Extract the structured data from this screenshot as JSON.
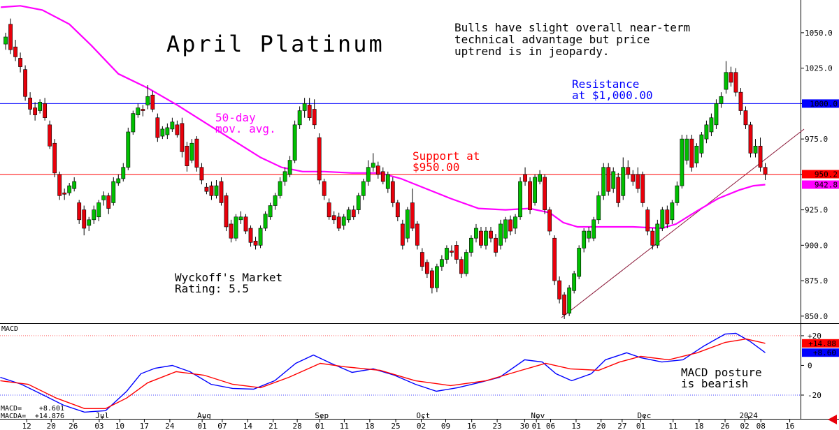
{
  "chart_data": {
    "type": "candlestick",
    "title": "April Platinum",
    "commentary": [
      "Bulls have slight overall near-term",
      "technical advantage but price",
      "uptrend is in jeopardy."
    ],
    "resistance_note": [
      "Resistance",
      "at $1,000.00"
    ],
    "support_note": [
      "Support at",
      "$950.00"
    ],
    "ma_note": [
      "50-day",
      "mov. avg."
    ],
    "rating_note": [
      "Wyckoff's Market",
      "Rating: 5.5"
    ],
    "macd_note": [
      "MACD posture",
      "is bearish"
    ],
    "up_color": "#00c000",
    "down_color": "#e8000b",
    "xlim": [
      -1.15,
      162.2
    ],
    "xticks": [
      {
        "value": 4.3,
        "label": "12"
      },
      {
        "value": 9.3,
        "label": "20"
      },
      {
        "value": 13.8,
        "label": "26"
      },
      {
        "value": 19.1,
        "label": "03"
      },
      {
        "value": 23.3,
        "label": "10"
      },
      {
        "value": 28.3,
        "label": "17"
      },
      {
        "value": 33.5,
        "label": "24"
      },
      {
        "value": 40.1,
        "label": "01"
      },
      {
        "value": 44.2,
        "label": "07"
      },
      {
        "value": 49.4,
        "label": "14"
      },
      {
        "value": 54.6,
        "label": "21"
      },
      {
        "value": 59.5,
        "label": "28"
      },
      {
        "value": 64.1,
        "label": "01"
      },
      {
        "value": 69.1,
        "label": "11"
      },
      {
        "value": 74.3,
        "label": "18"
      },
      {
        "value": 79.6,
        "label": "25"
      },
      {
        "value": 84.8,
        "label": "02"
      },
      {
        "value": 89.8,
        "label": "09"
      },
      {
        "value": 95.1,
        "label": "16"
      },
      {
        "value": 100.3,
        "label": "23"
      },
      {
        "value": 105.9,
        "label": "30"
      },
      {
        "value": 108.3,
        "label": "01"
      },
      {
        "value": 111.2,
        "label": "06"
      },
      {
        "value": 116.4,
        "label": "13"
      },
      {
        "value": 121.5,
        "label": "20"
      },
      {
        "value": 125.8,
        "label": "27"
      },
      {
        "value": 129.6,
        "label": "01"
      },
      {
        "value": 136.2,
        "label": "11"
      },
      {
        "value": 141.5,
        "label": "18"
      },
      {
        "value": 146.8,
        "label": "26"
      },
      {
        "value": 150.8,
        "label": "02"
      },
      {
        "value": 154.1,
        "label": "08"
      },
      {
        "value": 160.0,
        "label": "16"
      }
    ],
    "xticks_major": [
      {
        "value": 19.7,
        "label": "Jul"
      },
      {
        "value": 40.5,
        "label": "Aug"
      },
      {
        "value": 64.5,
        "label": "Sep"
      },
      {
        "value": 85.2,
        "label": "Oct"
      },
      {
        "value": 108.6,
        "label": "Nov"
      },
      {
        "value": 130.3,
        "label": "Dec"
      },
      {
        "value": 151.6,
        "label": "2024"
      }
    ],
    "ylim": [
      845,
      1073.1
    ],
    "yticks": [
      {
        "value": 850,
        "label": "850.0"
      },
      {
        "value": 875,
        "label": "875.0"
      },
      {
        "value": 900,
        "label": "900.0"
      },
      {
        "value": 925,
        "label": "925.0"
      },
      {
        "value": 950,
        "label": "950.0"
      },
      {
        "value": 975,
        "label": "975.0"
      },
      {
        "value": 1000,
        "label": "1000.0"
      },
      {
        "value": 1025,
        "label": "1025.0"
      },
      {
        "value": 1050,
        "label": "1050.0"
      }
    ],
    "hlines": [
      {
        "value": 1000,
        "color": "#0000ff"
      },
      {
        "value": 950,
        "color": "#ff0000"
      }
    ],
    "price_labels": [
      {
        "value": 1000,
        "label": "1000.0",
        "color": "#0000ff"
      },
      {
        "value": 950.2,
        "label": "950.2",
        "color": "#ff0000"
      },
      {
        "value": 942.8,
        "label": "942.8",
        "color": "#ff00ff"
      }
    ],
    "ohlc": [
      [
        1042,
        1050,
        1038,
        1047
      ],
      [
        1056,
        1060,
        1035,
        1038
      ],
      [
        1040,
        1045,
        1030,
        1033
      ],
      [
        1032,
        1036,
        1022,
        1026
      ],
      [
        1024,
        1027,
        1002,
        1005
      ],
      [
        1004,
        1008,
        992,
        996
      ],
      [
        997,
        1001,
        988,
        992
      ],
      [
        995,
        1003,
        993,
        1001
      ],
      [
        1000,
        1004,
        988,
        990
      ],
      [
        985,
        988,
        968,
        970
      ],
      [
        972,
        975,
        948,
        951
      ],
      [
        950,
        952,
        932,
        935
      ],
      [
        937,
        940,
        932,
        936
      ],
      [
        937,
        944,
        935,
        942
      ],
      [
        940,
        948,
        938,
        945
      ],
      [
        930,
        932,
        915,
        918
      ],
      [
        925,
        928,
        907,
        912
      ],
      [
        914,
        920,
        910,
        918
      ],
      [
        918,
        928,
        915,
        925
      ],
      [
        920,
        932,
        917,
        930
      ],
      [
        932,
        938,
        928,
        935
      ],
      [
        935,
        937,
        922,
        926
      ],
      [
        930,
        948,
        928,
        945
      ],
      [
        944,
        950,
        942,
        947
      ],
      [
        947,
        958,
        945,
        955
      ],
      [
        955,
        983,
        953,
        980
      ],
      [
        980,
        995,
        978,
        993
      ],
      [
        992,
        1000,
        990,
        997
      ],
      [
        996,
        999,
        991,
        995
      ],
      [
        999,
        1013,
        996,
        1005
      ],
      [
        1006,
        1009,
        994,
        996
      ],
      [
        990,
        993,
        973,
        976
      ],
      [
        977,
        984,
        975,
        982
      ],
      [
        978,
        986,
        975,
        983
      ],
      [
        982,
        990,
        980,
        987
      ],
      [
        985,
        988,
        976,
        978
      ],
      [
        986,
        990,
        962,
        966
      ],
      [
        970,
        973,
        952,
        956
      ],
      [
        960,
        975,
        958,
        972
      ],
      [
        975,
        977,
        952,
        955
      ],
      [
        955,
        958,
        943,
        946
      ],
      [
        941,
        944,
        936,
        938
      ],
      [
        942,
        945,
        932,
        935
      ],
      [
        935,
        946,
        933,
        942
      ],
      [
        945,
        948,
        928,
        930
      ],
      [
        935,
        937,
        910,
        913
      ],
      [
        915,
        918,
        902,
        905
      ],
      [
        905,
        922,
        903,
        920
      ],
      [
        918,
        924,
        915,
        920
      ],
      [
        920,
        922,
        908,
        910
      ],
      [
        912,
        914,
        899,
        902
      ],
      [
        903,
        906,
        897,
        900
      ],
      [
        900,
        914,
        898,
        912
      ],
      [
        912,
        924,
        910,
        922
      ],
      [
        920,
        930,
        918,
        928
      ],
      [
        928,
        937,
        925,
        935
      ],
      [
        935,
        948,
        933,
        945
      ],
      [
        945,
        955,
        942,
        952
      ],
      [
        950,
        963,
        948,
        960
      ],
      [
        960,
        988,
        958,
        985
      ],
      [
        985,
        998,
        982,
        995
      ],
      [
        995,
        1004,
        990,
        1000
      ],
      [
        999,
        1004,
        988,
        990
      ],
      [
        996,
        1003,
        982,
        985
      ],
      [
        976,
        979,
        943,
        946
      ],
      [
        945,
        947,
        932,
        935
      ],
      [
        930,
        933,
        918,
        920
      ],
      [
        921,
        924,
        915,
        918
      ],
      [
        920,
        923,
        910,
        912
      ],
      [
        914,
        922,
        911,
        920
      ],
      [
        918,
        927,
        916,
        925
      ],
      [
        925,
        928,
        918,
        920
      ],
      [
        925,
        937,
        922,
        935
      ],
      [
        935,
        947,
        932,
        945
      ],
      [
        945,
        960,
        942,
        955
      ],
      [
        955,
        965,
        952,
        958
      ],
      [
        956,
        959,
        947,
        950
      ],
      [
        952,
        955,
        943,
        945
      ],
      [
        940,
        952,
        937,
        950
      ],
      [
        945,
        948,
        927,
        930
      ],
      [
        930,
        932,
        917,
        920
      ],
      [
        915,
        918,
        897,
        900
      ],
      [
        905,
        927,
        902,
        925
      ],
      [
        930,
        940,
        910,
        912
      ],
      [
        915,
        917,
        897,
        900
      ],
      [
        895,
        898,
        882,
        885
      ],
      [
        888,
        890,
        877,
        880
      ],
      [
        882,
        884,
        866,
        870
      ],
      [
        870,
        887,
        867,
        885
      ],
      [
        885,
        893,
        882,
        890
      ],
      [
        890,
        900,
        887,
        898
      ],
      [
        896,
        900,
        892,
        895
      ],
      [
        900,
        903,
        887,
        890
      ],
      [
        890,
        892,
        877,
        880
      ],
      [
        880,
        897,
        878,
        895
      ],
      [
        895,
        907,
        892,
        905
      ],
      [
        905,
        915,
        902,
        912
      ],
      [
        910,
        913,
        898,
        900
      ],
      [
        900,
        913,
        897,
        910
      ],
      [
        910,
        913,
        902,
        905
      ],
      [
        905,
        908,
        892,
        895
      ],
      [
        900,
        918,
        897,
        915
      ],
      [
        905,
        920,
        902,
        918
      ],
      [
        918,
        921,
        907,
        910
      ],
      [
        912,
        922,
        908,
        920
      ],
      [
        920,
        948,
        918,
        945
      ],
      [
        950,
        955,
        942,
        945
      ],
      [
        945,
        948,
        922,
        925
      ],
      [
        930,
        950,
        928,
        948
      ],
      [
        945,
        953,
        943,
        950
      ],
      [
        948,
        950,
        922,
        925
      ],
      [
        925,
        927,
        907,
        910
      ],
      [
        905,
        907,
        872,
        875
      ],
      [
        875,
        878,
        859,
        862
      ],
      [
        865,
        867,
        848,
        851
      ],
      [
        852,
        872,
        850,
        870
      ],
      [
        868,
        882,
        866,
        880
      ],
      [
        878,
        900,
        876,
        898
      ],
      [
        898,
        912,
        895,
        910
      ],
      [
        905,
        913,
        902,
        910
      ],
      [
        905,
        920,
        903,
        918
      ],
      [
        918,
        938,
        915,
        935
      ],
      [
        935,
        958,
        932,
        955
      ],
      [
        955,
        958,
        935,
        938
      ],
      [
        940,
        955,
        937,
        952
      ],
      [
        948,
        951,
        927,
        930
      ],
      [
        935,
        962,
        932,
        955
      ],
      [
        955,
        960,
        947,
        950
      ],
      [
        950,
        953,
        942,
        945
      ],
      [
        950,
        955,
        937,
        940
      ],
      [
        950,
        952,
        927,
        930
      ],
      [
        925,
        927,
        907,
        910
      ],
      [
        910,
        912,
        897,
        900
      ],
      [
        900,
        918,
        898,
        915
      ],
      [
        912,
        927,
        910,
        925
      ],
      [
        925,
        928,
        912,
        915
      ],
      [
        918,
        932,
        915,
        930
      ],
      [
        930,
        945,
        928,
        942
      ],
      [
        942,
        978,
        940,
        975
      ],
      [
        960,
        978,
        957,
        975
      ],
      [
        975,
        978,
        952,
        955
      ],
      [
        958,
        972,
        955,
        970
      ],
      [
        965,
        980,
        962,
        978
      ],
      [
        975,
        988,
        972,
        985
      ],
      [
        980,
        993,
        977,
        990
      ],
      [
        985,
        1003,
        982,
        1000
      ],
      [
        1000,
        1008,
        997,
        1005
      ],
      [
        1010,
        1030,
        1007,
        1022
      ],
      [
        1022,
        1026,
        1012,
        1015
      ],
      [
        1022,
        1025,
        1005,
        1008
      ],
      [
        1008,
        1011,
        992,
        995
      ],
      [
        995,
        998,
        982,
        985
      ],
      [
        985,
        987,
        962,
        965
      ],
      [
        965,
        975,
        962,
        970
      ],
      [
        970,
        976,
        952,
        955
      ],
      [
        955,
        958,
        946,
        950.2
      ]
    ],
    "moving_average": {
      "color": "#ff00ff",
      "x": [
        -1,
        3,
        7.5,
        13,
        17.5,
        23,
        29,
        35,
        40.5,
        46,
        52,
        56.3,
        60.6,
        65,
        70.7,
        76.4,
        80.7,
        85,
        90.8,
        96.5,
        102,
        106.9,
        111,
        113.8,
        116.7,
        122.2,
        128,
        133.9,
        136.8,
        141,
        145.4,
        149.7,
        152.6,
        155
      ],
      "values": [
        1068,
        1069,
        1066,
        1056,
        1041,
        1021,
        1011,
        999,
        987,
        975,
        962,
        955,
        952,
        952,
        951,
        951,
        947,
        941,
        933,
        926,
        925,
        926,
        923,
        916,
        913,
        913,
        913,
        912,
        915,
        924,
        933,
        939,
        942,
        942.8
      ]
    },
    "macd": {
      "title": "MACD",
      "ylim": [
        -36,
        27.5
      ],
      "yticks": [
        {
          "value": 20,
          "label": "+20"
        },
        0,
        -20
      ],
      "levels": [
        {
          "value": 20,
          "color": "#ff0000"
        },
        {
          "value": -20,
          "color": "#0000ff"
        }
      ],
      "last_labels": [
        {
          "value": 14.876,
          "label": "+14.88",
          "color": "#ff0000"
        },
        {
          "value": 8.601,
          "label": "+8.60",
          "color": "#0000ff"
        }
      ],
      "series": [
        {
          "name": "MACD=",
          "value_label": "+8.601",
          "color": "#0000ff",
          "x": [
            -1.1,
            3.2,
            7.5,
            11.8,
            16.1,
            20.4,
            24.7,
            27.6,
            30.5,
            34.0,
            37.6,
            41.9,
            46.3,
            50.6,
            54.9,
            59.2,
            62.8,
            66.4,
            70.7,
            75.0,
            79.3,
            83.6,
            87.9,
            92.2,
            96.5,
            100.8,
            105.9,
            109.5,
            112.3,
            115.5,
            119.5,
            122.4,
            126.7,
            129.6,
            133.9,
            138.2,
            142.5,
            146.8,
            149.0,
            151.8,
            155
          ],
          "values": [
            -8,
            -12.7,
            -19.7,
            -26.8,
            -31.5,
            -30.5,
            -17.4,
            -5.6,
            -1.9,
            0,
            -4.2,
            -12.7,
            -15.5,
            -16,
            -10.3,
            1.4,
            7,
            1.4,
            -4.7,
            -2.3,
            -6.6,
            -12.7,
            -17.4,
            -15,
            -11.7,
            -8,
            3.8,
            2.3,
            -5.6,
            -10.3,
            -5.6,
            3.8,
            8.5,
            5.2,
            2.3,
            3.8,
            13.1,
            21.1,
            21.6,
            16.4,
            8.601
          ]
        },
        {
          "name": "MACDA=",
          "value_label": "+14.876",
          "color": "#ff0000",
          "x": [
            -1.1,
            4.6,
            10.3,
            16.1,
            20.4,
            24.7,
            29.0,
            34.8,
            40.5,
            46.3,
            52.0,
            57.8,
            64.2,
            69.2,
            76.4,
            83.6,
            90.8,
            98.0,
            105.2,
            110.2,
            115.2,
            121.0,
            125.3,
            129.6,
            135.3,
            141.1,
            146.8,
            151.1,
            155
          ],
          "values": [
            -10.3,
            -12.7,
            -22,
            -29.1,
            -29.1,
            -22,
            -11.7,
            -4.2,
            -6.6,
            -12.7,
            -15,
            -8,
            1.4,
            -0.9,
            -3.3,
            -10.3,
            -13.6,
            -10.3,
            -3.3,
            1.4,
            -2.3,
            -3.3,
            2.3,
            6.1,
            3.8,
            8.5,
            15.5,
            17.8,
            14.876
          ]
        }
      ]
    }
  }
}
